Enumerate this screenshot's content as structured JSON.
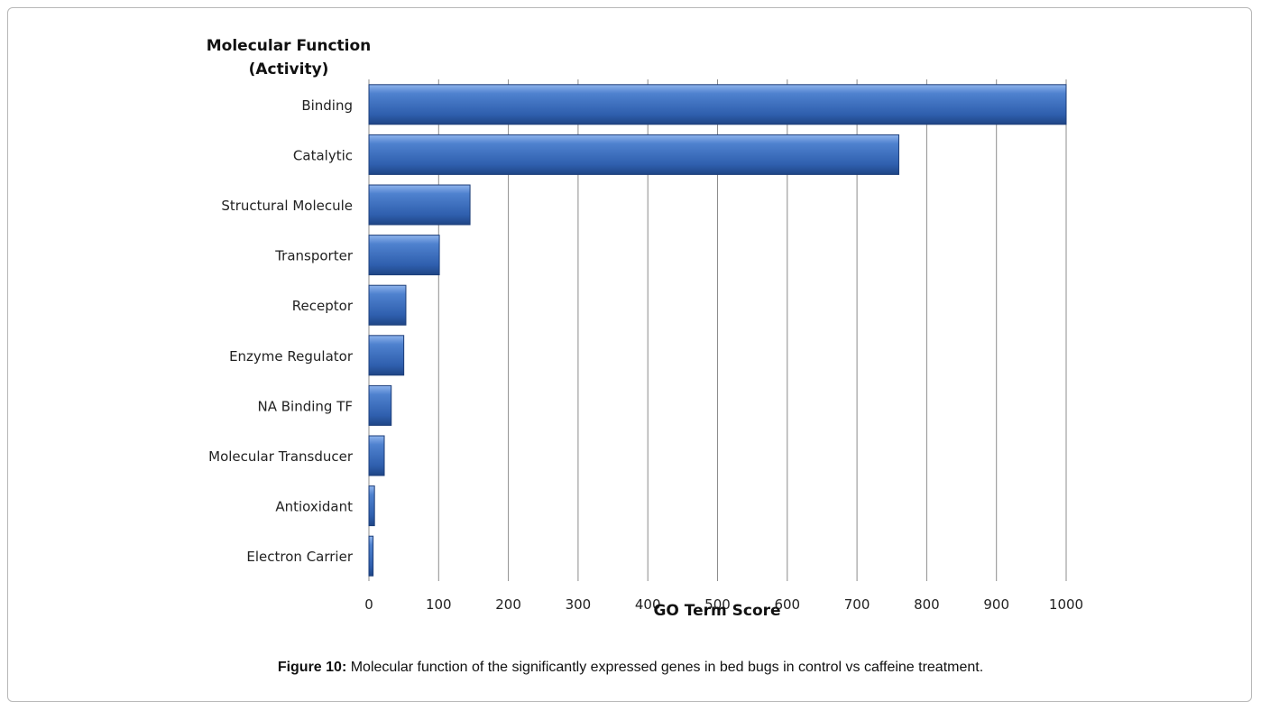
{
  "chart_data": {
    "type": "bar",
    "orientation": "horizontal",
    "title": "Molecular Function\n(Activity)",
    "title_lines": [
      "Molecular Function",
      "(Activity)"
    ],
    "xlabel": "GO Term Score",
    "ylabel": "",
    "xlim": [
      0,
      1000
    ],
    "xticks": [
      0,
      100,
      200,
      300,
      400,
      500,
      600,
      700,
      800,
      900,
      1000
    ],
    "grid": "vertical",
    "legend": "none",
    "categories": [
      "Binding",
      "Catalytic",
      "Structural Molecule",
      "Transporter",
      "Receptor",
      "Enzyme Regulator",
      "NA Binding TF",
      "Molecular Transducer",
      "Antioxidant",
      "Electron Carrier"
    ],
    "values": [
      1000,
      760,
      145,
      101,
      53,
      50,
      32,
      22,
      8,
      6
    ],
    "bar_color": "#3a6fbd"
  },
  "caption": {
    "label": "Figure 10:",
    "text": " Molecular function of the significantly expressed genes in bed bugs in control vs caffeine treatment."
  }
}
